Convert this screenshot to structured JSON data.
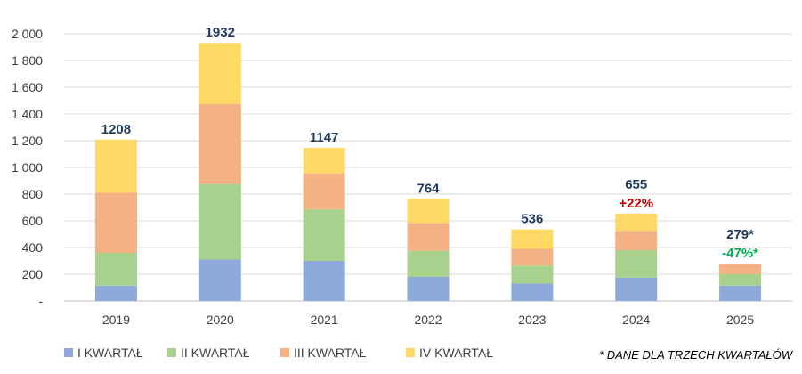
{
  "chart_data": {
    "type": "bar",
    "stacked": true,
    "categories": [
      "2019",
      "2020",
      "2021",
      "2022",
      "2023",
      "2024",
      "2025"
    ],
    "series": [
      {
        "name": "I KWARTAŁ",
        "color": "#8eaadb",
        "values": [
          115,
          310,
          300,
          180,
          130,
          175,
          115
        ]
      },
      {
        "name": "II KWARTAŁ",
        "color": "#a9d18e",
        "values": [
          245,
          565,
          385,
          195,
          135,
          205,
          85
        ]
      },
      {
        "name": "III KWARTAŁ",
        "color": "#f4b183",
        "values": [
          450,
          600,
          270,
          210,
          125,
          145,
          79
        ]
      },
      {
        "name": "IV KWARTAŁ",
        "color": "#ffd966",
        "values": [
          398,
          457,
          192,
          179,
          146,
          130,
          0
        ]
      }
    ],
    "totals": [
      "1208",
      "1932",
      "1147",
      "764",
      "536",
      "655",
      "279*"
    ],
    "changes": [
      {
        "category": "2024",
        "text": "+22%",
        "color": "#c00000"
      },
      {
        "category": "2025",
        "text": "-47%*",
        "color": "#00b050"
      }
    ],
    "y_ticks": [
      "-",
      "200",
      "400",
      "600",
      "800",
      "1 000",
      "1 200",
      "1 400",
      "1 600",
      "1 800",
      "2 000"
    ],
    "ylim": [
      0,
      2000
    ],
    "grid": true,
    "legend_position": "bottom",
    "footnote": "* DANE DLA TRZECH KWARTAŁÓW"
  }
}
